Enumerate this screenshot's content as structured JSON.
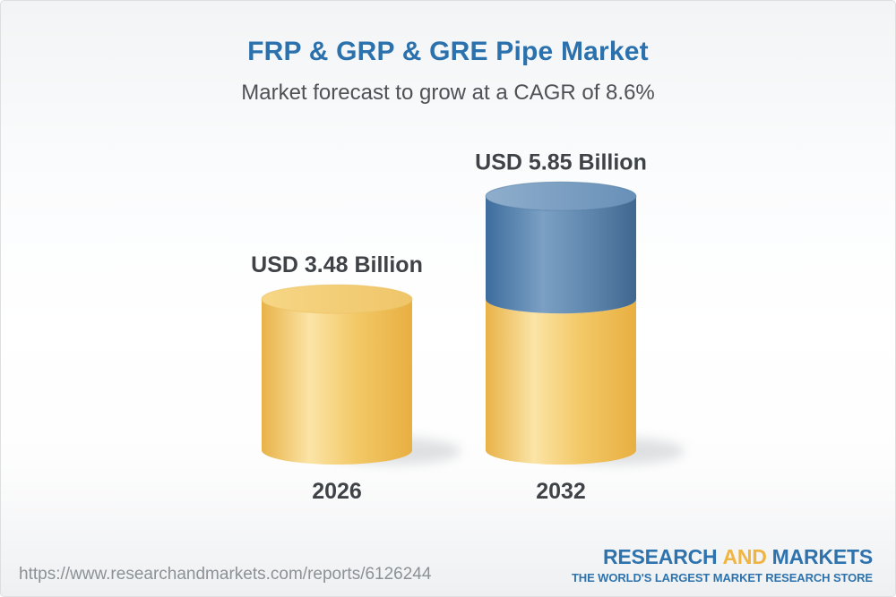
{
  "header": {
    "title": "FRP & GRP & GRE Pipe Market",
    "subtitle": "Market forecast to grow at a CAGR of 8.6%"
  },
  "chart_data": {
    "type": "bar",
    "subtype": "3d-cylinder-stacked",
    "title": "FRP & GRP & GRE Pipe Market",
    "subtitle": "Market forecast to grow at a CAGR of 8.6%",
    "cagr_percent": 8.6,
    "unit": "USD Billion",
    "categories": [
      "2026",
      "2032"
    ],
    "values": [
      3.48,
      5.85
    ],
    "value_labels": [
      "USD 3.48 Billion",
      "USD 5.85 Billion"
    ],
    "bars": [
      {
        "category": "2026",
        "total": 3.48,
        "value_label": "USD 3.48 Billion",
        "segments": [
          {
            "value": 3.48,
            "color": "yellow"
          }
        ]
      },
      {
        "category": "2032",
        "total": 5.85,
        "value_label": "USD 5.85 Billion",
        "segments": [
          {
            "value": 3.48,
            "color": "yellow"
          },
          {
            "value": 2.37,
            "color": "blue"
          }
        ]
      }
    ],
    "palette": {
      "yellow_body": [
        "#E8B248",
        "#FBE4A6",
        "#F3C968",
        "#E8AF41"
      ],
      "yellow_top": [
        "#F6D685",
        "#F0C569"
      ],
      "yellow_rim": "#E9BC55",
      "blue_body": [
        "#3D6D9D",
        "#7BA0C4",
        "#5C84AB",
        "#3F678F"
      ],
      "blue_top": [
        "#8FAECC",
        "#6890B8"
      ],
      "blue_rim": "#49769E",
      "label_color": "#3f4347",
      "shadow_color": "#8e969c"
    },
    "layout": {
      "legend": false,
      "grid": false,
      "axes": "none",
      "ylim": [
        0,
        6.5
      ]
    }
  },
  "footer": {
    "url": "https://www.researchandmarkets.com/reports/6126244",
    "logo": {
      "research": "RESEARCH",
      "and": "AND",
      "markets": "MARKETS",
      "tagline": "THE WORLD'S LARGEST MARKET RESEARCH STORE"
    }
  },
  "colors": {
    "title_blue": "#2b71ad",
    "subtitle_gray": "#4e5256",
    "logo_blue": "#2e73ae",
    "logo_yellow": "#f0b441",
    "url_gray": "#8c9196"
  }
}
